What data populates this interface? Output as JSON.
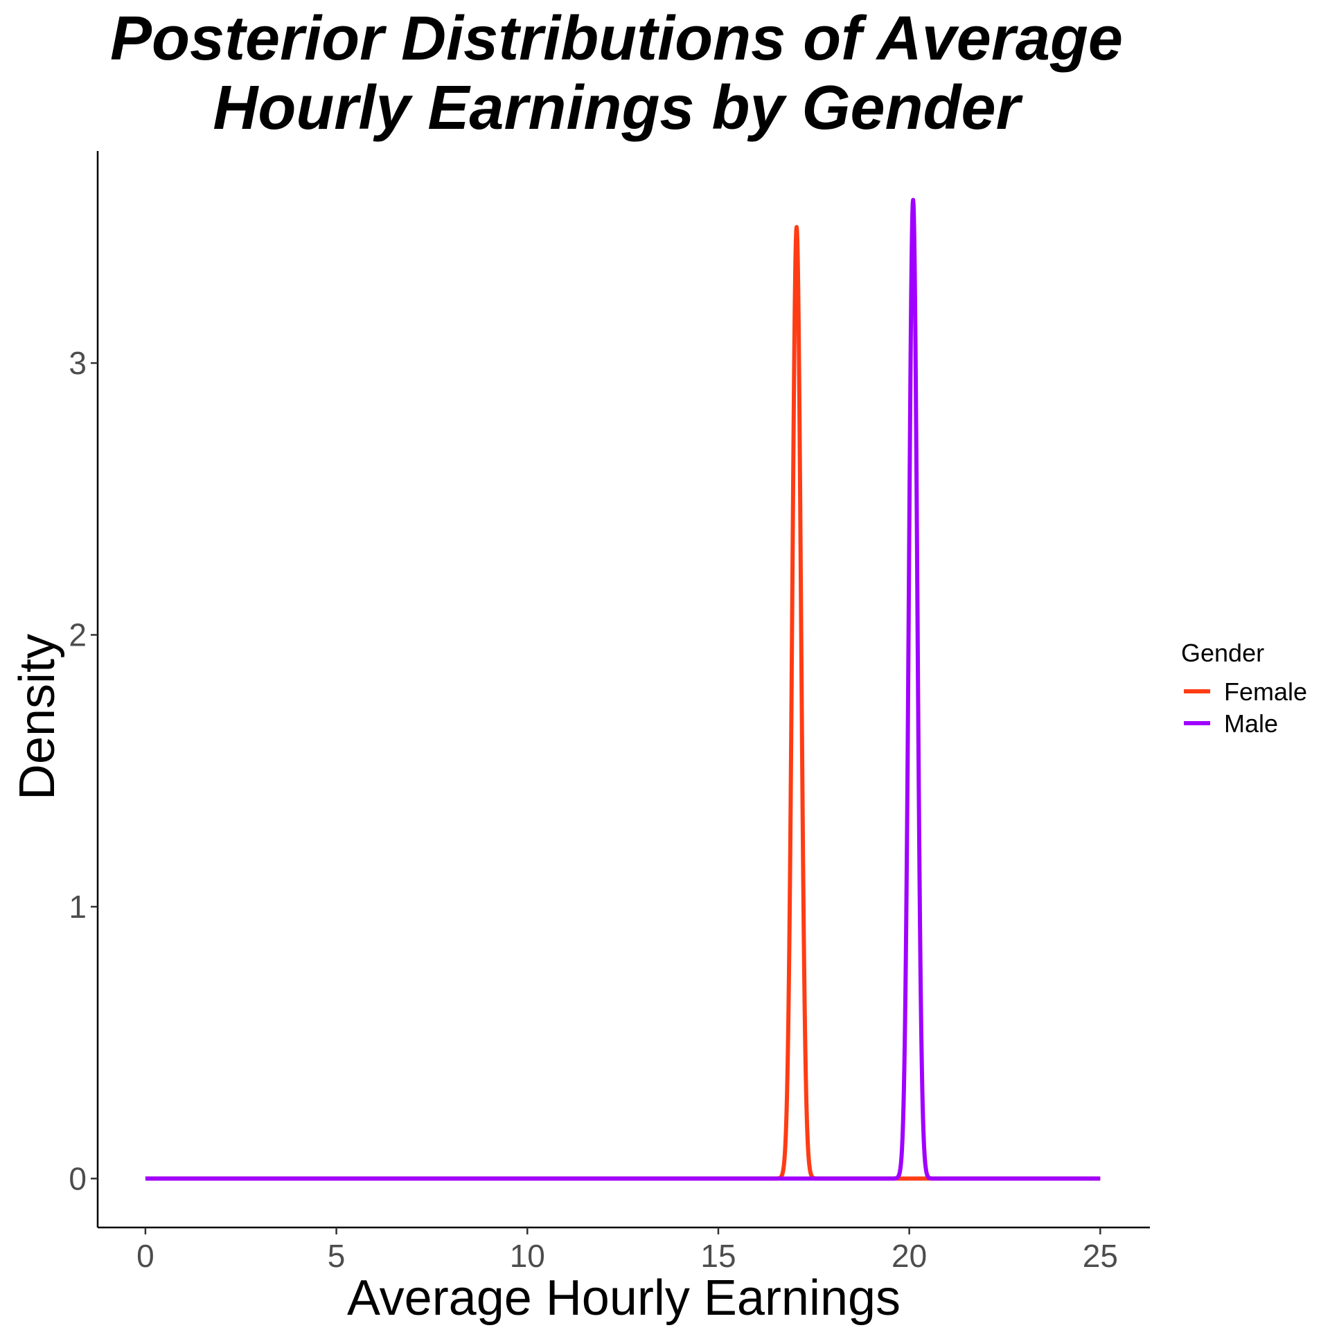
{
  "chart_data": {
    "type": "line",
    "title_lines": [
      "Posterior Distributions of Average",
      "Hourly Earnings by Gender"
    ],
    "xlabel": "Average Hourly Earnings",
    "ylabel": "Density",
    "xlim": [
      -1.25,
      26.3
    ],
    "ylim": [
      -0.18,
      3.78
    ],
    "x_ticks": [
      0,
      5,
      10,
      15,
      20,
      25
    ],
    "x_tick_labels": [
      "0",
      "5",
      "10",
      "15",
      "20",
      "25"
    ],
    "y_ticks": [
      0,
      1,
      2,
      3
    ],
    "y_tick_labels": [
      "0",
      "1",
      "2",
      "3"
    ],
    "x_range": [
      0,
      25
    ],
    "grid": false,
    "legend": {
      "title": "Gender",
      "position": "right"
    },
    "series": [
      {
        "name": "Female",
        "color": "#ff3c14",
        "distribution": "normal",
        "mean": 17.05,
        "sd": 0.114,
        "peak_density": 3.5
      },
      {
        "name": "Male",
        "color": "#a000ff",
        "distribution": "normal",
        "mean": 20.1,
        "sd": 0.11,
        "peak_density": 3.6
      }
    ]
  }
}
